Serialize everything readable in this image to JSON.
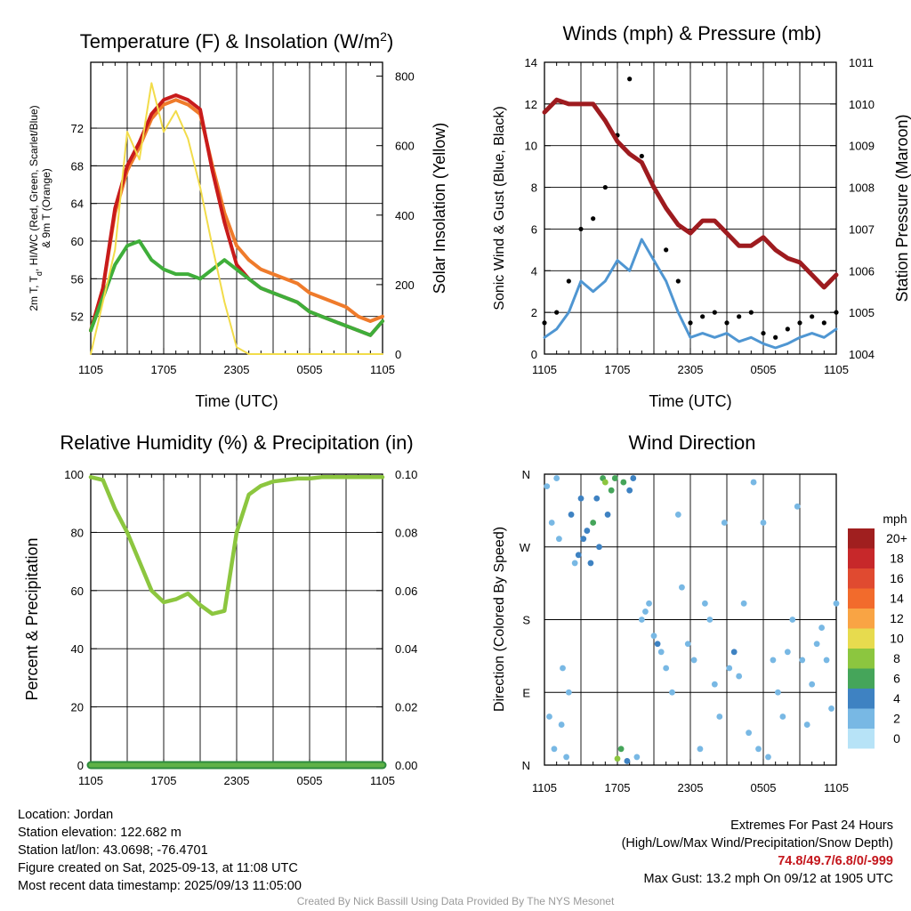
{
  "x_ticks": [
    "1105",
    "1705",
    "2305",
    "0505",
    "1105"
  ],
  "chart_data": [
    {
      "type": "line",
      "title": "Temperature (F) & Insolation (W/m",
      "title_sup": "2",
      "title_tail": ")",
      "xlabel": "Time (UTC)",
      "ylabel_line1": "2m T, T",
      "ylabel_sub": "d",
      "ylabel_line1b": ", HI/WC (Red, Green, Scarlet/Blue)",
      "ylabel_line2": "& 9m T (Orange)",
      "ylabel_right": "Solar Insolation (Yellow)",
      "ylim": [
        48,
        79
      ],
      "yticks": [
        "52",
        "56",
        "60",
        "64",
        "68",
        "72"
      ],
      "y2lim": [
        0,
        840
      ],
      "y2ticks": [
        "0",
        "200",
        "400",
        "600",
        "800"
      ],
      "x": [
        0,
        1,
        2,
        3,
        4,
        5,
        6,
        7,
        8,
        9,
        10,
        11,
        12,
        13,
        14,
        15,
        16,
        17,
        18,
        19,
        20,
        21,
        22,
        23,
        24
      ],
      "series": [
        {
          "color": "#ef7b2b",
          "axis": "left",
          "values": [
            50.5,
            55,
            63,
            67.5,
            70,
            73,
            74.5,
            75,
            74.5,
            73.5,
            68,
            63,
            59.5,
            58,
            57,
            56.5,
            56,
            55.5,
            54.5,
            54,
            53.5,
            53,
            52,
            51.5,
            52
          ]
        },
        {
          "color": "#c81b1b",
          "axis": "left",
          "values": [
            50.5,
            55,
            63.5,
            68,
            70.5,
            73.5,
            75,
            75.5,
            75,
            74,
            67.5,
            62,
            57.5,
            56,
            55,
            54.5,
            54,
            53.5,
            52.5,
            52,
            51.5,
            51,
            50.5,
            50,
            51.5
          ]
        },
        {
          "color": "#3fae3a",
          "axis": "left",
          "values": [
            50.5,
            54,
            57.5,
            59.5,
            60,
            58,
            57,
            56.5,
            56.5,
            56,
            57,
            58,
            57,
            56,
            55,
            54.5,
            54,
            53.5,
            52.5,
            52,
            51.5,
            51,
            50.5,
            50,
            51.5
          ]
        },
        {
          "color": "#f2dc4a",
          "axis": "right",
          "values": [
            0,
            150,
            300,
            640,
            560,
            780,
            640,
            700,
            620,
            480,
            310,
            150,
            20,
            0,
            0,
            0,
            0,
            0,
            0,
            0,
            0,
            0,
            0,
            0,
            0
          ]
        }
      ]
    },
    {
      "type": "line",
      "title": "Winds (mph) & Pressure (mb)",
      "xlabel": "Time (UTC)",
      "ylabel": "Sonic Wind & Gust (Blue, Black)",
      "ylabel_right": "Station Pressure (Maroon)",
      "ylim": [
        0,
        14
      ],
      "yticks": [
        "0",
        "2",
        "4",
        "6",
        "8",
        "10",
        "12",
        "14"
      ],
      "y2lim": [
        1004,
        1011
      ],
      "y2ticks": [
        "1004",
        "1005",
        "1006",
        "1007",
        "1008",
        "1009",
        "1010",
        "1011"
      ],
      "x": [
        0,
        1,
        2,
        3,
        4,
        5,
        6,
        7,
        8,
        9,
        10,
        11,
        12,
        13,
        14,
        15,
        16,
        17,
        18,
        19,
        20,
        21,
        22,
        23,
        24
      ],
      "series": [
        {
          "color": "#4f96d2",
          "axis": "left",
          "values": [
            0.8,
            1.2,
            2,
            3.5,
            3,
            3.5,
            4.5,
            4,
            5.5,
            4.5,
            3.5,
            2,
            0.8,
            1,
            0.8,
            1,
            0.6,
            0.8,
            0.5,
            0.3,
            0.5,
            0.8,
            1,
            0.8,
            1.2
          ]
        },
        {
          "color": "#000000",
          "axis": "left",
          "values": [
            1.5,
            2,
            3.5,
            6,
            6.5,
            8,
            10.5,
            13.2,
            9.5,
            8,
            5,
            3.5,
            1.5,
            1.8,
            2,
            1.5,
            1.8,
            2,
            1,
            0.8,
            1.2,
            1.5,
            1.8,
            1.5,
            2
          ]
        },
        {
          "color": "#9e1b1f",
          "axis": "right",
          "values": [
            1009.8,
            1010.1,
            1010,
            1010,
            1010,
            1009.6,
            1009.1,
            1008.8,
            1008.6,
            1008,
            1007.5,
            1007.1,
            1006.9,
            1007.2,
            1007.2,
            1006.9,
            1006.6,
            1006.6,
            1006.8,
            1006.5,
            1006.3,
            1006.2,
            1005.9,
            1005.6,
            1005.9
          ]
        }
      ]
    },
    {
      "type": "line",
      "title": "Relative Humidity (%) & Precipitation (in)",
      "ylabel": "Percent & Precipitation",
      "ylim": [
        0,
        100
      ],
      "yticks": [
        "0",
        "20",
        "40",
        "60",
        "80",
        "100"
      ],
      "y2lim": [
        0,
        0.1
      ],
      "y2ticks": [
        "0.00",
        "0.02",
        "0.04",
        "0.06",
        "0.08",
        "0.10"
      ],
      "x": [
        0,
        1,
        2,
        3,
        4,
        5,
        6,
        7,
        8,
        9,
        10,
        11,
        12,
        13,
        14,
        15,
        16,
        17,
        18,
        19,
        20,
        21,
        22,
        23,
        24
      ],
      "series": [
        {
          "color": "#8cc63f",
          "axis": "left",
          "values": [
            99,
            98,
            88,
            80,
            70,
            60,
            56,
            57,
            59,
            55,
            52,
            53,
            80,
            93,
            96,
            97.5,
            98,
            98.5,
            98.5,
            99,
            99,
            99,
            99,
            99,
            99
          ]
        },
        {
          "color": "#2e8b3e",
          "axis": "right",
          "values": [
            0,
            0,
            0,
            0,
            0,
            0,
            0,
            0,
            0,
            0,
            0,
            0,
            0,
            0,
            0,
            0,
            0,
            0,
            0,
            0,
            0,
            0,
            0,
            0,
            0
          ]
        }
      ]
    },
    {
      "type": "scatter",
      "title": "Wind Direction",
      "ylabel": "Direction (Colored By Speed)",
      "ylim": [
        0,
        360
      ],
      "yticks": [
        "N",
        "E",
        "S",
        "W",
        "N"
      ],
      "legend_title": "mph",
      "legend_labels": [
        "20+",
        "18",
        "16",
        "14",
        "12",
        "10",
        "8",
        "6",
        "4",
        "2",
        "0"
      ],
      "legend_colors": [
        "#a01f1f",
        "#c7282a",
        "#e04a30",
        "#f26b2c",
        "#f9a444",
        "#e7db4e",
        "#8cc63f",
        "#45a55a",
        "#3e82c2",
        "#78b8e4",
        "#b7e3f7"
      ],
      "points": [
        [
          0.2,
          345,
          1
        ],
        [
          0.4,
          60,
          1
        ],
        [
          0.6,
          300,
          1
        ],
        [
          0.8,
          20,
          1
        ],
        [
          1,
          355,
          1
        ],
        [
          1.2,
          280,
          2
        ],
        [
          1.4,
          50,
          1
        ],
        [
          1.5,
          120,
          2
        ],
        [
          1.8,
          10,
          1
        ],
        [
          2,
          90,
          2
        ],
        [
          2.2,
          310,
          3
        ],
        [
          2.5,
          250,
          2
        ],
        [
          2.8,
          260,
          4
        ],
        [
          3,
          330,
          3
        ],
        [
          3.2,
          280,
          3
        ],
        [
          3.5,
          290,
          4
        ],
        [
          3.8,
          250,
          3
        ],
        [
          4,
          300,
          5
        ],
        [
          4.3,
          330,
          4
        ],
        [
          4.5,
          270,
          3
        ],
        [
          4.8,
          355,
          6
        ],
        [
          5,
          350,
          7
        ],
        [
          5.2,
          310,
          4
        ],
        [
          5.5,
          340,
          5
        ],
        [
          5.8,
          355,
          6
        ],
        [
          6,
          8,
          7
        ],
        [
          6.3,
          20,
          6
        ],
        [
          6.5,
          350,
          5
        ],
        [
          6.8,
          5,
          4
        ],
        [
          7,
          340,
          3
        ],
        [
          7.3,
          355,
          3
        ],
        [
          7.6,
          10,
          2
        ],
        [
          8,
          180,
          2
        ],
        [
          8.3,
          190,
          1
        ],
        [
          8.6,
          200,
          1
        ],
        [
          9,
          160,
          2
        ],
        [
          9.3,
          150,
          3
        ],
        [
          9.6,
          140,
          2
        ],
        [
          10,
          120,
          2
        ],
        [
          10.5,
          90,
          1
        ],
        [
          11,
          310,
          1
        ],
        [
          11.3,
          220,
          1
        ],
        [
          11.8,
          150,
          2
        ],
        [
          12.3,
          130,
          1
        ],
        [
          12.8,
          20,
          1
        ],
        [
          13.2,
          200,
          1
        ],
        [
          13.6,
          180,
          1
        ],
        [
          14,
          100,
          1
        ],
        [
          14.4,
          60,
          1
        ],
        [
          14.8,
          300,
          1
        ],
        [
          15.2,
          120,
          2
        ],
        [
          15.6,
          140,
          3
        ],
        [
          16,
          110,
          2
        ],
        [
          16.4,
          200,
          1
        ],
        [
          16.8,
          40,
          1
        ],
        [
          17.2,
          350,
          1
        ],
        [
          17.6,
          20,
          1
        ],
        [
          18,
          300,
          1
        ],
        [
          18.4,
          10,
          1
        ],
        [
          18.8,
          130,
          1
        ],
        [
          19.2,
          90,
          2
        ],
        [
          19.6,
          60,
          1
        ],
        [
          20,
          140,
          2
        ],
        [
          20.4,
          180,
          1
        ],
        [
          20.8,
          320,
          1
        ],
        [
          21.2,
          130,
          2
        ],
        [
          21.6,
          50,
          1
        ],
        [
          22,
          100,
          2
        ],
        [
          22.4,
          150,
          1
        ],
        [
          22.8,
          170,
          2
        ],
        [
          23.2,
          130,
          2
        ],
        [
          23.6,
          70,
          1
        ],
        [
          24,
          200,
          1
        ]
      ]
    }
  ],
  "footer_left": [
    "Location: Jordan",
    "Station elevation: 122.682 m",
    "Station lat/lon: 43.0698; -76.4701",
    "Figure created on Sat, 2025-09-13, at 11:08 UTC",
    "Most recent data timestamp: 2025/09/13 11:05:00"
  ],
  "extremes_title": "Extremes For Past 24 Hours",
  "extremes_sub": "(High/Low/Max Wind/Precipitation/Snow Depth)",
  "extremes_values": "74.8/49.7/6.8/0/-999",
  "max_gust": "Max Gust: 13.2 mph On 09/12 at 1905 UTC",
  "credit": "Created By Nick Bassill Using Data Provided By The NYS Mesonet"
}
